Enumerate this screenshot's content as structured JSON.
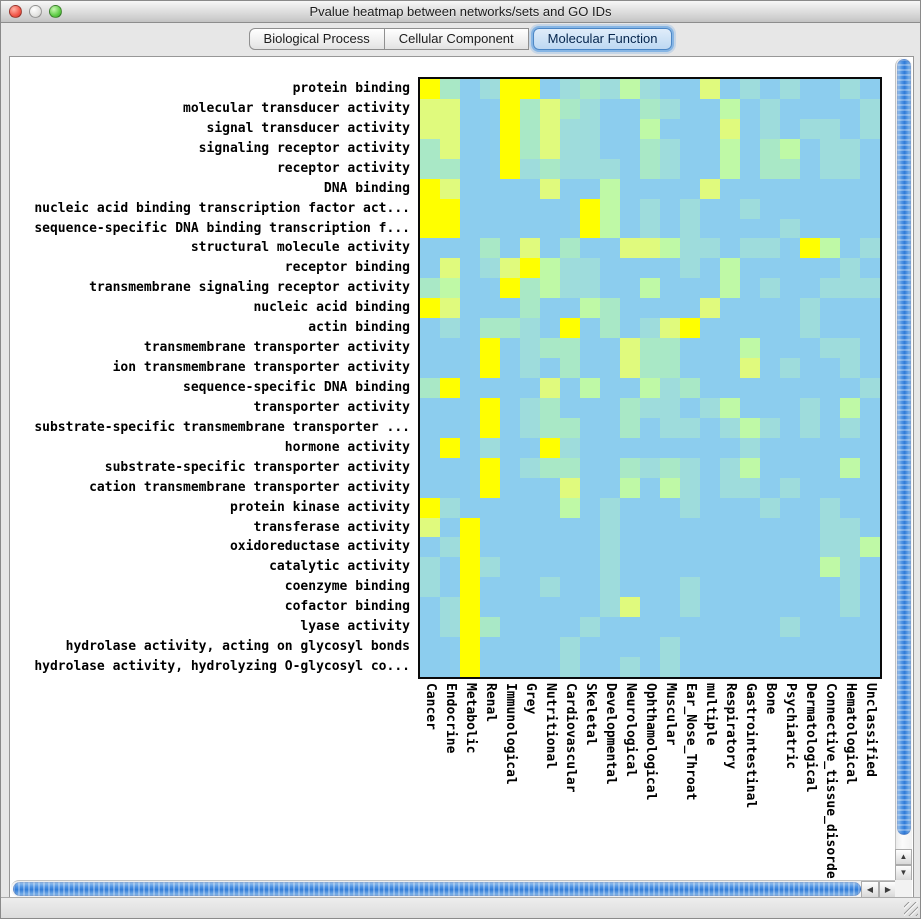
{
  "window": {
    "title": "Pvalue heatmap between networks/sets and GO IDs"
  },
  "tabs": [
    {
      "label": "Biological Process",
      "selected": false
    },
    {
      "label": "Cellular Component",
      "selected": false
    },
    {
      "label": "Molecular Function",
      "selected": true
    }
  ],
  "chart_data": {
    "type": "heatmap",
    "rows": [
      "protein binding",
      "molecular transducer activity",
      "signal transducer activity",
      "signaling receptor activity",
      "receptor activity",
      "DNA binding",
      "nucleic acid binding transcription factor act...",
      "sequence-specific DNA binding transcription f...",
      "structural molecule activity",
      "receptor binding",
      "transmembrane signaling receptor activity",
      "nucleic acid binding",
      "actin binding",
      "transmembrane transporter activity",
      "ion transmembrane transporter activity",
      "sequence-specific DNA binding",
      "transporter activity",
      "substrate-specific transmembrane transporter ...",
      "hormone activity",
      "substrate-specific transporter activity",
      "cation transmembrane transporter activity",
      "protein kinase activity",
      "transferase activity",
      "oxidoreductase activity",
      "catalytic activity",
      "coenzyme binding",
      "cofactor binding",
      "lyase activity",
      "hydrolase activity, acting on glycosyl bonds",
      "hydrolase activity, hydrolyzing O-glycosyl co..."
    ],
    "columns": [
      "Cancer",
      "Endocrine",
      "Metabolic",
      "Renal",
      "Immunological",
      "Grey",
      "Nutritional",
      "Cardiovascular",
      "Skeletal",
      "Developmental",
      "Neurological",
      "Ophthamological",
      "Muscular",
      "Ear_Nose_Throat",
      "multiple",
      "Respiratory",
      "Gastrointestinal",
      "Bone",
      "Psychiatric",
      "Dermatological",
      "Connective_tissue_disorder",
      "Hematological",
      "Unclassified"
    ],
    "palette": {
      "b": "#8CCDEE",
      "T": "#9EDCDC",
      "M": "#A9E8C6",
      "G": "#BFF9A6",
      "L": "#E0FA7D",
      "Y": "#FFFF00"
    },
    "grid": [
      "YMbTYYbTMTGTbbLbTbTbbTb",
      "LLbbYMLMTbbMTbbGbTbbbbT",
      "LLbbYMLTTbbGbbbLbTbTTbT",
      "MLbbYMLTTbbMTbbGbMGbTTb",
      "MMbbYTMTTTbMTbbGbMMbTTb",
      "YLbbbbLbbGbbbbLbbbbbbbb",
      "YYbbbbbbYGbTbTbbTbbbbbb",
      "YYbbbbbbYGbTbTbbbbTbbbb",
      "bbbMbLbMbbLLGTTbTTbYGbT",
      "bLbTLYGTTbbbbTbGbbbbbTb",
      "MGbbYMGTTbbGbbbGbTbbTTT",
      "YLbbbMbbGMbbbbLbbbbTbbb",
      "bTbMMTbYbMbTLYbbbbbTbbb",
      "bbbYbTMMbbLMMbbbGbbbTTb",
      "bbbYbTbMbbLMMbbbLbTbbTb",
      "MYbbbbLbGbbGTMbbbbbbbbT",
      "bbbYbTMbbbMTTbTGbbbTbGb",
      "bbbYbTMMbbMbTTbTGTbTbTb",
      "bYbTbbYTbbbbbbbbTbbbbbb",
      "bbbYbTMMbbMTMTbTGbbbbGb",
      "bbbYbbbLbbGbGTbTTbTbbbb",
      "YTbbbbbGbTbbbTbbbTbbTbb",
      "LbYbbbbbbTbbbbbbbbbbTTb",
      "bTYbbbbbbTbbbbbbbbbbTTG",
      "TbYTbbbbbTbbbbbbbbbbGTb",
      "TbYbbbTbbTbbbTbbbbbbbTb",
      "bTYbbbbbbTLbbTbbbbbbbTb",
      "bTYMbbbbTbbbbbbbbbTbbbb",
      "bbYbbbbTbbbbTbbbbbbbbbb",
      "bbYbbbbTbbTbTbbbbbbbbbb"
    ]
  },
  "scrollbars": {
    "vertical": {
      "up_arrow": "▲",
      "down_arrow": "▼"
    },
    "horizontal": {
      "left_arrow": "◀",
      "right_arrow": "▶"
    }
  }
}
